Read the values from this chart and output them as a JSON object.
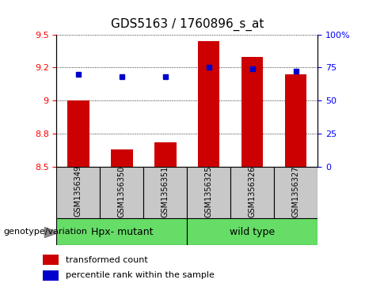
{
  "title": "GDS5163 / 1760896_s_at",
  "samples": [
    "GSM1356349",
    "GSM1356350",
    "GSM1356351",
    "GSM1356325",
    "GSM1356326",
    "GSM1356327"
  ],
  "red_values": [
    9.0,
    8.63,
    8.68,
    9.45,
    9.33,
    9.2
  ],
  "blue_values": [
    70,
    68,
    68,
    75,
    74,
    72
  ],
  "ylim_left": [
    8.5,
    9.5
  ],
  "ylim_right": [
    0,
    100
  ],
  "yticks_left": [
    8.5,
    8.75,
    9.0,
    9.25,
    9.5
  ],
  "yticks_right": [
    0,
    25,
    50,
    75,
    100
  ],
  "group1_label": "Hpx- mutant",
  "group2_label": "wild type",
  "group_label": "genotype/variation",
  "legend1": "transformed count",
  "legend2": "percentile rank within the sample",
  "bar_color": "#cc0000",
  "dot_color": "#0000cc",
  "bar_width": 0.5,
  "grid_color": "#000000",
  "bg_plot": "#ffffff",
  "bg_sample": "#c8c8c8",
  "bg_group": "#66dd66",
  "title_fontsize": 11,
  "tick_fontsize": 8,
  "sample_fontsize": 7,
  "group_fontsize": 9,
  "legend_fontsize": 8
}
